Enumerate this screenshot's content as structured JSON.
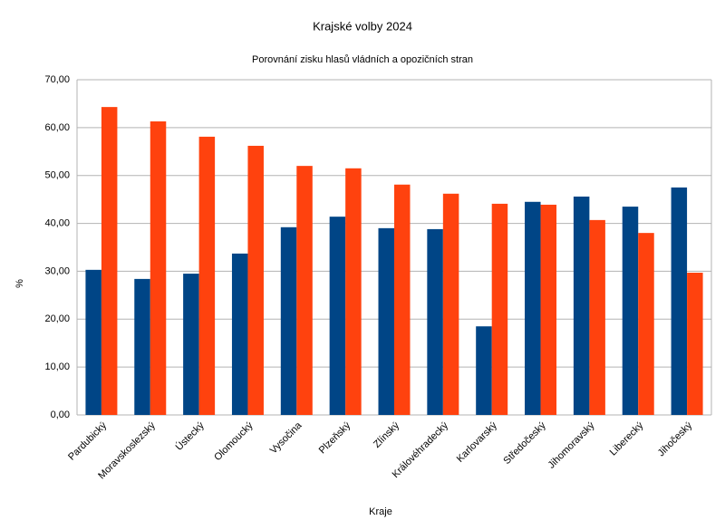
{
  "chart_data": {
    "type": "bar",
    "title": "Krajské volby 2024",
    "subtitle": "Porovnání zisku hlasů vládních a opozičních stran",
    "x_label": "Kraje",
    "y_label": "%",
    "categories": [
      "Pardubický",
      "Moravskoslezský",
      "Ústecký",
      "Olomoucký",
      "Vysočina",
      "Plzeňský",
      "Zlínský",
      "Královéhradecký",
      "Karlovarský",
      "Středočeský",
      "Jihomoravský",
      "Liberecký",
      "Jihočeský"
    ],
    "series": [
      {
        "color": "#004586",
        "values": [
          30.3,
          28.4,
          29.5,
          33.7,
          39.2,
          41.4,
          39.0,
          38.8,
          18.5,
          44.5,
          45.6,
          43.5,
          47.5
        ]
      },
      {
        "color": "#ff420e",
        "values": [
          64.3,
          61.3,
          58.1,
          56.2,
          52.0,
          51.5,
          48.1,
          46.2,
          44.1,
          43.9,
          40.7,
          38.0,
          29.7
        ]
      }
    ],
    "ylim": [
      0,
      70
    ],
    "yticks": [
      {
        "value": 0,
        "label": "0,00"
      },
      {
        "value": 10,
        "label": "10,00"
      },
      {
        "value": 20,
        "label": "20,00"
      },
      {
        "value": 30,
        "label": "30,00"
      },
      {
        "value": 40,
        "label": "40,00"
      },
      {
        "value": 50,
        "label": "50,00"
      },
      {
        "value": 60,
        "label": "60,00"
      },
      {
        "value": 70,
        "label": "70,00"
      }
    ],
    "grid": true
  }
}
